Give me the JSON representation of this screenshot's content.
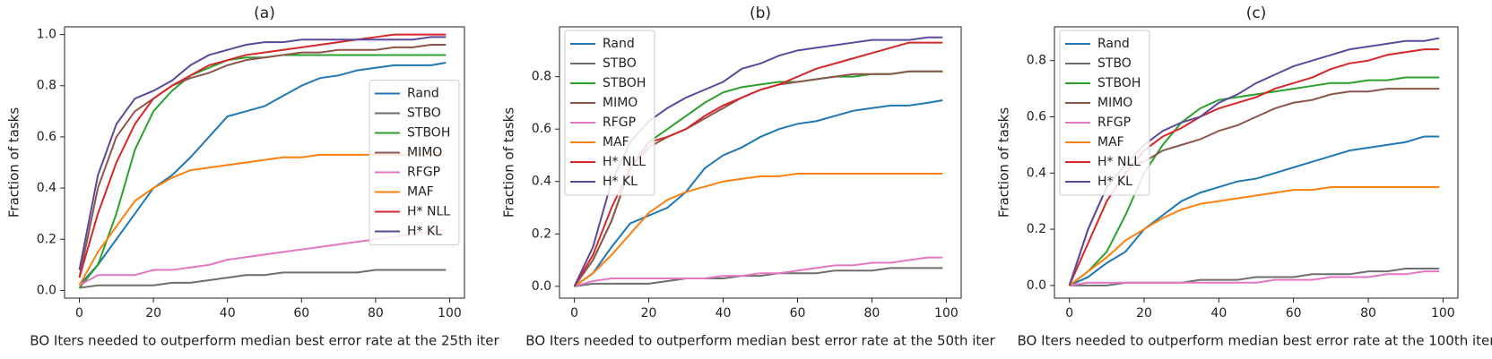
{
  "chart_data": [
    {
      "type": "line",
      "title": "(a)",
      "xlabel": "BO Iters needed to outperform median best error rate at the 25th iter",
      "ylabel": "Fraction of tasks",
      "x": [
        0,
        5,
        10,
        15,
        20,
        25,
        30,
        35,
        40,
        45,
        50,
        55,
        60,
        65,
        70,
        75,
        80,
        85,
        90,
        95,
        99
      ],
      "xlim": [
        -4,
        104
      ],
      "ylim": [
        -0.03,
        1.03
      ],
      "xticks": [
        0,
        20,
        40,
        60,
        80,
        100
      ],
      "yticks": [
        {
          "value": 0,
          "label": "0.0"
        },
        0.2,
        0.4,
        0.6,
        0.8,
        {
          "value": 1,
          "label": "1.0"
        }
      ],
      "legend": "center right",
      "series": [
        {
          "name": "Rand",
          "color": "#1f77b4",
          "values": [
            0.02,
            0.1,
            0.2,
            0.3,
            0.4,
            0.45,
            0.52,
            0.6,
            0.68,
            0.7,
            0.72,
            0.76,
            0.8,
            0.83,
            0.84,
            0.86,
            0.87,
            0.88,
            0.88,
            0.88,
            0.89
          ]
        },
        {
          "name": "STBO",
          "color": "#6e6e6e",
          "values": [
            0.01,
            0.02,
            0.02,
            0.02,
            0.02,
            0.03,
            0.03,
            0.04,
            0.05,
            0.06,
            0.06,
            0.07,
            0.07,
            0.07,
            0.07,
            0.07,
            0.08,
            0.08,
            0.08,
            0.08,
            0.08
          ]
        },
        {
          "name": "STBOH",
          "color": "#2ca02c",
          "values": [
            0.01,
            0.1,
            0.3,
            0.55,
            0.7,
            0.78,
            0.84,
            0.87,
            0.9,
            0.91,
            0.91,
            0.92,
            0.92,
            0.92,
            0.92,
            0.92,
            0.92,
            0.92,
            0.92,
            0.92,
            0.92
          ]
        },
        {
          "name": "MIMO",
          "color": "#8c564b",
          "values": [
            0.05,
            0.4,
            0.6,
            0.7,
            0.75,
            0.8,
            0.83,
            0.85,
            0.88,
            0.9,
            0.91,
            0.92,
            0.93,
            0.93,
            0.94,
            0.94,
            0.94,
            0.95,
            0.95,
            0.96,
            0.96
          ]
        },
        {
          "name": "RFGP",
          "color": "#e377c2",
          "values": [
            0.02,
            0.06,
            0.06,
            0.06,
            0.08,
            0.08,
            0.09,
            0.1,
            0.12,
            0.13,
            0.14,
            0.15,
            0.16,
            0.17,
            0.18,
            0.19,
            0.2,
            0.21,
            0.22,
            0.23,
            0.24
          ]
        },
        {
          "name": "MAF",
          "color": "#ff7f0e",
          "values": [
            0.02,
            0.15,
            0.25,
            0.35,
            0.4,
            0.44,
            0.47,
            0.48,
            0.49,
            0.5,
            0.51,
            0.52,
            0.52,
            0.53,
            0.53,
            0.53,
            0.53,
            0.53,
            0.53,
            0.53,
            0.53
          ]
        },
        {
          "name": "H* NLL",
          "color": "#d62728",
          "values": [
            0.05,
            0.3,
            0.5,
            0.65,
            0.75,
            0.8,
            0.84,
            0.88,
            0.9,
            0.92,
            0.93,
            0.94,
            0.95,
            0.96,
            0.97,
            0.98,
            0.99,
            1.0,
            1.0,
            1.0,
            1.0
          ]
        },
        {
          "name": "H* KL",
          "color": "#5b4a9b",
          "values": [
            0.08,
            0.45,
            0.65,
            0.75,
            0.78,
            0.82,
            0.88,
            0.92,
            0.94,
            0.96,
            0.97,
            0.97,
            0.98,
            0.98,
            0.98,
            0.98,
            0.98,
            0.98,
            0.98,
            0.99,
            0.99
          ]
        }
      ]
    },
    {
      "type": "line",
      "title": "(b)",
      "xlabel": "BO Iters needed to outperform median best error rate at the 50th iter",
      "ylabel": "Fraction of tasks",
      "x": [
        0,
        5,
        10,
        15,
        20,
        25,
        30,
        35,
        40,
        45,
        50,
        55,
        60,
        65,
        70,
        75,
        80,
        85,
        90,
        95,
        99
      ],
      "xlim": [
        -4,
        104
      ],
      "ylim": [
        -0.045,
        0.99
      ],
      "xticks": [
        0,
        20,
        40,
        60,
        80,
        100
      ],
      "yticks": [
        {
          "value": 0,
          "label": "0.0"
        },
        0.2,
        0.4,
        0.6,
        0.8
      ],
      "legend": "upper left",
      "series": [
        {
          "name": "Rand",
          "color": "#1f77b4",
          "values": [
            0,
            0.05,
            0.15,
            0.24,
            0.27,
            0.3,
            0.36,
            0.45,
            0.5,
            0.53,
            0.57,
            0.6,
            0.62,
            0.63,
            0.65,
            0.67,
            0.68,
            0.69,
            0.69,
            0.7,
            0.71
          ]
        },
        {
          "name": "STBO",
          "color": "#6e6e6e",
          "values": [
            0,
            0.01,
            0.01,
            0.01,
            0.01,
            0.02,
            0.03,
            0.03,
            0.03,
            0.04,
            0.04,
            0.05,
            0.05,
            0.05,
            0.06,
            0.06,
            0.06,
            0.07,
            0.07,
            0.07,
            0.07
          ]
        },
        {
          "name": "STBOH",
          "color": "#2ca02c",
          "values": [
            0,
            0.1,
            0.25,
            0.45,
            0.55,
            0.6,
            0.65,
            0.7,
            0.74,
            0.76,
            0.77,
            0.78,
            0.78,
            0.79,
            0.8,
            0.8,
            0.81,
            0.81,
            0.82,
            0.82,
            0.82
          ]
        },
        {
          "name": "MIMO",
          "color": "#8c564b",
          "values": [
            0,
            0.1,
            0.25,
            0.45,
            0.53,
            0.57,
            0.6,
            0.64,
            0.68,
            0.72,
            0.75,
            0.77,
            0.78,
            0.79,
            0.8,
            0.81,
            0.81,
            0.81,
            0.82,
            0.82,
            0.82
          ]
        },
        {
          "name": "RFGP",
          "color": "#e377c2",
          "values": [
            0,
            0.02,
            0.03,
            0.03,
            0.03,
            0.03,
            0.03,
            0.03,
            0.04,
            0.04,
            0.05,
            0.05,
            0.06,
            0.07,
            0.08,
            0.08,
            0.09,
            0.09,
            0.1,
            0.11,
            0.11
          ]
        },
        {
          "name": "MAF",
          "color": "#ff7f0e",
          "values": [
            0,
            0.05,
            0.12,
            0.2,
            0.28,
            0.33,
            0.36,
            0.38,
            0.4,
            0.41,
            0.42,
            0.42,
            0.43,
            0.43,
            0.43,
            0.43,
            0.43,
            0.43,
            0.43,
            0.43,
            0.43
          ]
        },
        {
          "name": "H* NLL",
          "color": "#d62728",
          "values": [
            0,
            0.12,
            0.3,
            0.45,
            0.55,
            0.57,
            0.6,
            0.65,
            0.69,
            0.72,
            0.75,
            0.77,
            0.8,
            0.83,
            0.85,
            0.87,
            0.89,
            0.91,
            0.93,
            0.93,
            0.93
          ]
        },
        {
          "name": "H* KL",
          "color": "#5b4a9b",
          "values": [
            0,
            0.15,
            0.4,
            0.55,
            0.63,
            0.68,
            0.72,
            0.75,
            0.78,
            0.83,
            0.85,
            0.88,
            0.9,
            0.91,
            0.92,
            0.93,
            0.94,
            0.94,
            0.94,
            0.95,
            0.95
          ]
        }
      ]
    },
    {
      "type": "line",
      "title": "(c)",
      "xlabel": "BO Iters needed to outperform median best error rate at the 100th iter",
      "ylabel": "Fraction of tasks",
      "x": [
        0,
        5,
        10,
        15,
        20,
        25,
        30,
        35,
        40,
        45,
        50,
        55,
        60,
        65,
        70,
        75,
        80,
        85,
        90,
        95,
        99
      ],
      "xlim": [
        -4,
        104
      ],
      "ylim": [
        -0.045,
        0.92
      ],
      "xticks": [
        0,
        20,
        40,
        60,
        80,
        100
      ],
      "yticks": [
        {
          "value": 0,
          "label": "0.0"
        },
        0.2,
        0.4,
        0.6,
        0.8
      ],
      "legend": "upper left",
      "series": [
        {
          "name": "Rand",
          "color": "#1f77b4",
          "values": [
            0,
            0.03,
            0.08,
            0.12,
            0.2,
            0.25,
            0.3,
            0.33,
            0.35,
            0.37,
            0.38,
            0.4,
            0.42,
            0.44,
            0.46,
            0.48,
            0.49,
            0.5,
            0.51,
            0.53,
            0.53
          ]
        },
        {
          "name": "STBO",
          "color": "#6e6e6e",
          "values": [
            0,
            0,
            0,
            0.01,
            0.01,
            0.01,
            0.01,
            0.02,
            0.02,
            0.02,
            0.03,
            0.03,
            0.03,
            0.04,
            0.04,
            0.04,
            0.05,
            0.05,
            0.06,
            0.06,
            0.06
          ]
        },
        {
          "name": "STBOH",
          "color": "#2ca02c",
          "values": [
            0,
            0.05,
            0.12,
            0.25,
            0.4,
            0.5,
            0.58,
            0.63,
            0.66,
            0.67,
            0.68,
            0.69,
            0.7,
            0.71,
            0.72,
            0.72,
            0.73,
            0.73,
            0.74,
            0.74,
            0.74
          ]
        },
        {
          "name": "MIMO",
          "color": "#8c564b",
          "values": [
            0,
            0.2,
            0.35,
            0.43,
            0.44,
            0.48,
            0.5,
            0.52,
            0.55,
            0.57,
            0.6,
            0.63,
            0.65,
            0.66,
            0.68,
            0.69,
            0.69,
            0.7,
            0.7,
            0.7,
            0.7
          ]
        },
        {
          "name": "RFGP",
          "color": "#e377c2",
          "values": [
            0,
            0.01,
            0.01,
            0.01,
            0.01,
            0.01,
            0.01,
            0.01,
            0.01,
            0.01,
            0.01,
            0.02,
            0.02,
            0.02,
            0.03,
            0.03,
            0.03,
            0.04,
            0.04,
            0.05,
            0.05
          ]
        },
        {
          "name": "MAF",
          "color": "#ff7f0e",
          "values": [
            0,
            0.05,
            0.1,
            0.16,
            0.2,
            0.24,
            0.27,
            0.29,
            0.3,
            0.31,
            0.32,
            0.33,
            0.34,
            0.34,
            0.35,
            0.35,
            0.35,
            0.35,
            0.35,
            0.35,
            0.35
          ]
        },
        {
          "name": "H* NLL",
          "color": "#d62728",
          "values": [
            0,
            0.15,
            0.3,
            0.4,
            0.48,
            0.53,
            0.56,
            0.6,
            0.63,
            0.65,
            0.67,
            0.7,
            0.72,
            0.74,
            0.77,
            0.79,
            0.8,
            0.82,
            0.83,
            0.84,
            0.84
          ]
        },
        {
          "name": "H* KL",
          "color": "#5b4a9b",
          "values": [
            0,
            0.2,
            0.35,
            0.43,
            0.5,
            0.55,
            0.58,
            0.6,
            0.65,
            0.68,
            0.72,
            0.75,
            0.78,
            0.8,
            0.82,
            0.84,
            0.85,
            0.86,
            0.87,
            0.87,
            0.88
          ]
        }
      ]
    }
  ]
}
